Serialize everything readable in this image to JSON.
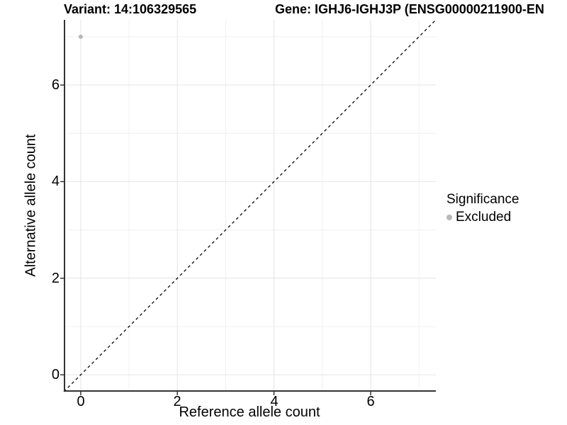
{
  "header": {
    "variant_title": "Variant: 14:106329565",
    "gene_title": "Gene: IGHJ6-IGHJ3P (ENSG00000211900-EN"
  },
  "chart_data": {
    "type": "scatter",
    "title": "Variant: 14:106329565",
    "title_right": "Gene: IGHJ6-IGHJ3P (ENSG00000211900-EN",
    "xlabel": "Reference allele count",
    "ylabel": "Alternative allele count",
    "xlim": [
      -0.35,
      7.35
    ],
    "ylim": [
      -0.35,
      7.35
    ],
    "x_tick_labels": [
      "0",
      "2",
      "4",
      "6"
    ],
    "x_tick_values": [
      0,
      2,
      4,
      6
    ],
    "y_tick_labels": [
      "0",
      "2",
      "4",
      "6"
    ],
    "y_tick_values": [
      0,
      2,
      4,
      6
    ],
    "x_minor_values": [
      1,
      3,
      5,
      7
    ],
    "y_minor_values": [
      1,
      3,
      5,
      7
    ],
    "grid": "on",
    "identity_line": {
      "style": "dashed",
      "color": "#000000",
      "from": [
        -0.35,
        -0.35
      ],
      "to": [
        7.35,
        7.35
      ]
    },
    "series": [
      {
        "name": "Excluded",
        "color": "#b8b8b8",
        "point_radius": 3,
        "points": [
          [
            0,
            7
          ]
        ]
      }
    ],
    "legend": {
      "title": "Significance",
      "position": "right",
      "items": [
        {
          "label": "Excluded",
          "color": "#b8b8b8"
        }
      ]
    }
  },
  "colors": {
    "background": "#ffffff",
    "grid_major": "#e4e4e4",
    "grid_minor": "#f0f0f0",
    "axis": "#333333",
    "text": "#000000"
  }
}
